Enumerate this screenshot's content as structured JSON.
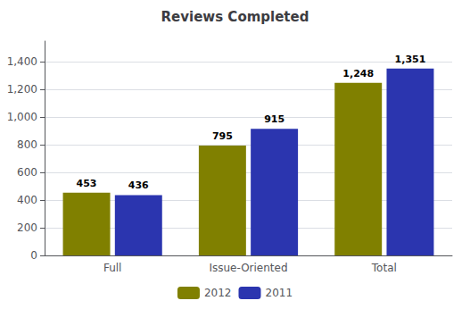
{
  "chart_data": {
    "type": "bar",
    "title": "Reviews Completed",
    "categories": [
      "Full",
      "Issue-Oriented",
      "Total"
    ],
    "series": [
      {
        "name": "2012",
        "color": "#808000",
        "values": [
          453,
          795,
          1248
        ],
        "value_labels": [
          "453",
          "795",
          "1,248"
        ]
      },
      {
        "name": "2011",
        "color": "#2B35AF",
        "values": [
          436,
          915,
          1351
        ],
        "value_labels": [
          "436",
          "915",
          "1,351"
        ]
      }
    ],
    "ylim": [
      0,
      1550
    ],
    "yticks": [
      0,
      200,
      400,
      600,
      800,
      {
        "value": 1000,
        "label": "1,000"
      },
      {
        "value": 1200,
        "label": "1,200"
      },
      {
        "value": 1400,
        "label": "1,400"
      }
    ],
    "grid": true,
    "legend": "bottom",
    "data_labels": true
  }
}
